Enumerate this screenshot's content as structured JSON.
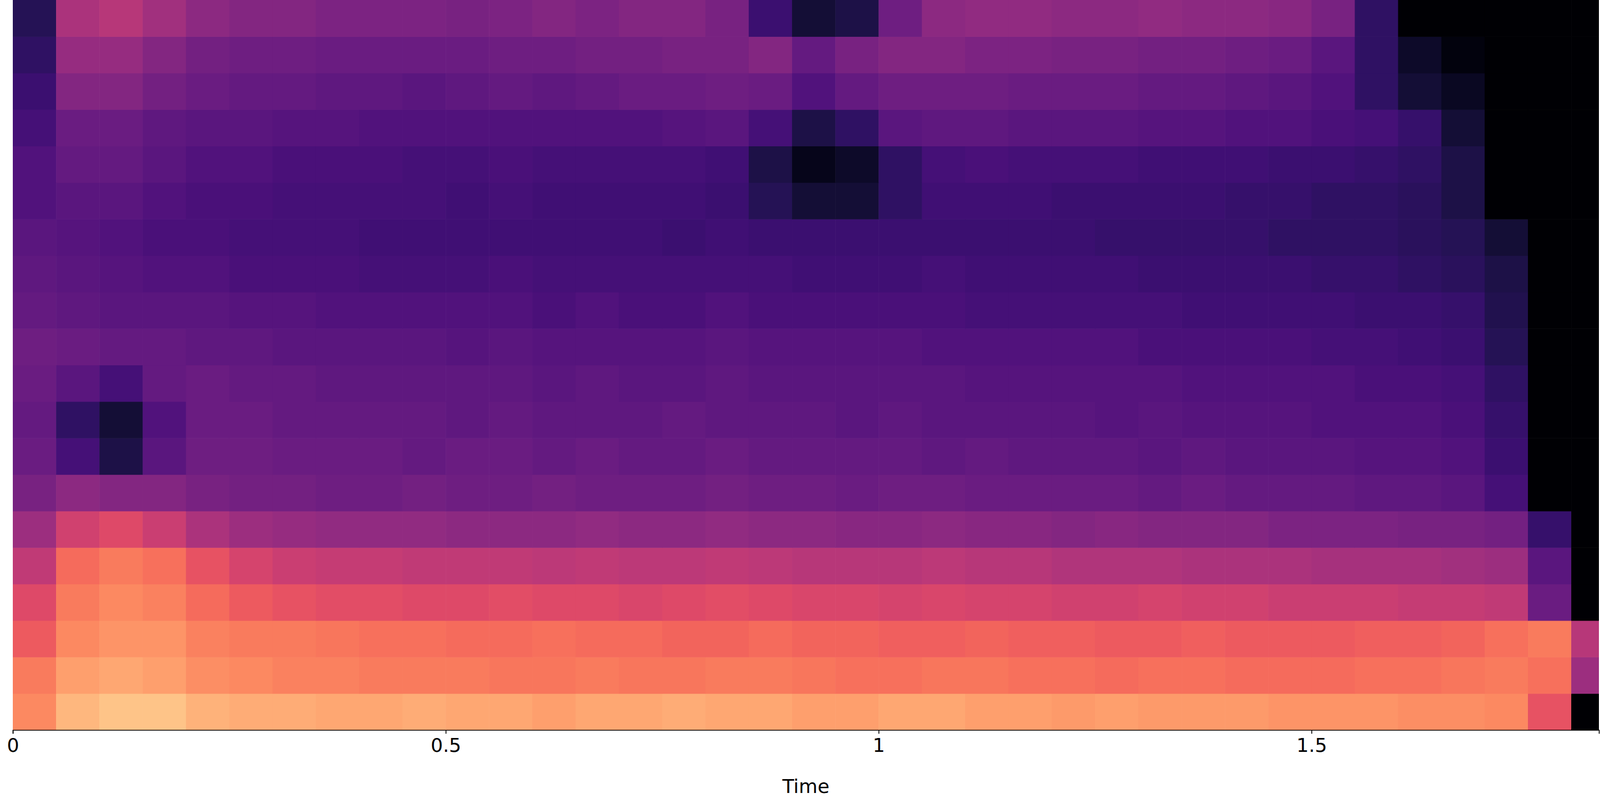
{
  "chart_data": {
    "type": "heatmap",
    "x_label": "Time",
    "x": [
      0,
      0.05,
      0.1,
      0.15,
      0.2,
      0.25,
      0.3,
      0.35,
      0.4,
      0.45,
      0.5,
      0.55,
      0.6,
      0.65,
      0.7,
      0.75,
      0.8,
      0.85,
      0.9,
      0.95,
      1,
      1.05,
      1.1,
      1.15,
      1.2,
      1.25,
      1.3,
      1.35,
      1.4,
      1.45,
      1.5,
      1.55,
      1.6,
      1.65,
      1.7,
      1.75,
      1.8
    ],
    "xlim": [
      0,
      1.832
    ],
    "xticks": [
      0,
      0.5,
      1,
      1.5
    ],
    "zlim": [
      -80,
      0
    ],
    "tick_labels": "x",
    "values": [
      [
        -20,
        -12,
        -10,
        -10,
        -13,
        -14,
        -14,
        -15,
        -15,
        -14,
        -15,
        -15,
        -16,
        -15,
        -15,
        -14,
        -15,
        -15,
        -16,
        -16,
        -15,
        -15,
        -16,
        -16,
        -17,
        -16,
        -17,
        -17,
        -17,
        -18,
        -18,
        -18,
        -19,
        -19,
        -20,
        -30,
        -80
      ],
      [
        -22,
        -16,
        -15,
        -16,
        -19,
        -20,
        -21,
        -21,
        -22,
        -22,
        -22,
        -23,
        -23,
        -22,
        -23,
        -23,
        -22,
        -22,
        -23,
        -24,
        -24,
        -23,
        -23,
        -24,
        -24,
        -25,
        -24,
        -24,
        -25,
        -25,
        -25,
        -24,
        -24,
        -23,
        -22,
        -24,
        -45
      ],
      [
        -28,
        -20,
        -18,
        -18,
        -21,
        -22,
        -22,
        -23,
        -24,
        -24,
        -25,
        -25,
        -24,
        -25,
        -25,
        -26,
        -26,
        -25,
        -26,
        -26,
        -27,
        -27,
        -26,
        -27,
        -27,
        -28,
        -28,
        -27,
        -28,
        -28,
        -28,
        -27,
        -27,
        -26,
        -24,
        -22,
        -40
      ],
      [
        -32,
        -22,
        -20,
        -21,
        -25,
        -28,
        -30,
        -31,
        -31,
        -32,
        -32,
        -31,
        -32,
        -32,
        -33,
        -32,
        -31,
        -32,
        -33,
        -33,
        -34,
        -33,
        -34,
        -34,
        -35,
        -35,
        -34,
        -35,
        -35,
        -36,
        -36,
        -36,
        -37,
        -37,
        -38,
        -55,
        -80
      ],
      [
        -38,
        -25,
        -22,
        -24,
        -30,
        -34,
        -36,
        -37,
        -37,
        -38,
        -38,
        -38,
        -39,
        -38,
        -39,
        -39,
        -38,
        -39,
        -40,
        -40,
        -40,
        -39,
        -40,
        -40,
        -41,
        -41,
        -41,
        -42,
        -42,
        -42,
        -43,
        -43,
        -43,
        -44,
        -45,
        -58,
        -80
      ],
      [
        -45,
        -35,
        -32,
        -36,
        -42,
        -45,
        -46,
        -47,
        -47,
        -47,
        -48,
        -48,
        -48,
        -47,
        -48,
        -48,
        -47,
        -48,
        -48,
        -49,
        -49,
        -48,
        -49,
        -49,
        -50,
        -49,
        -50,
        -50,
        -50,
        -51,
        -51,
        -51,
        -52,
        -52,
        -53,
        -65,
        -80
      ],
      [
        -52,
        -48,
        -50,
        -50,
        -52,
        -53,
        -53,
        -54,
        -54,
        -53,
        -54,
        -54,
        -53,
        -54,
        -54,
        -54,
        -53,
        -54,
        -54,
        -55,
        -54,
        -54,
        -55,
        -55,
        -55,
        -55,
        -56,
        -55,
        -56,
        -56,
        -56,
        -57,
        -57,
        -58,
        -62,
        -80,
        -80
      ],
      [
        -55,
        -62,
        -70,
        -58,
        -54,
        -54,
        -55,
        -55,
        -55,
        -56,
        -55,
        -55,
        -56,
        -55,
        -56,
        -56,
        -55,
        -56,
        -56,
        -56,
        -56,
        -57,
        -56,
        -57,
        -57,
        -57,
        -58,
        -57,
        -58,
        -58,
        -58,
        -59,
        -59,
        -60,
        -64,
        -80,
        -80
      ],
      [
        -56,
        -66,
        -72,
        -60,
        -55,
        -55,
        -56,
        -56,
        -56,
        -56,
        -57,
        -56,
        -57,
        -57,
        -57,
        -56,
        -57,
        -57,
        -57,
        -58,
        -57,
        -58,
        -58,
        -58,
        -58,
        -59,
        -58,
        -59,
        -59,
        -59,
        -60,
        -60,
        -60,
        -61,
        -65,
        -80,
        -80
      ],
      [
        -55,
        -58,
        -62,
        -56,
        -55,
        -56,
        -56,
        -57,
        -57,
        -57,
        -57,
        -57,
        -58,
        -57,
        -58,
        -58,
        -57,
        -58,
        -58,
        -58,
        -58,
        -58,
        -59,
        -59,
        -59,
        -59,
        -59,
        -60,
        -60,
        -60,
        -60,
        -61,
        -61,
        -62,
        -66,
        -80,
        -80
      ],
      [
        -54,
        -55,
        -56,
        -56,
        -57,
        -57,
        -58,
        -58,
        -58,
        -58,
        -59,
        -58,
        -59,
        -59,
        -59,
        -59,
        -58,
        -59,
        -59,
        -59,
        -59,
        -60,
        -60,
        -60,
        -60,
        -60,
        -61,
        -61,
        -61,
        -61,
        -62,
        -62,
        -63,
        -64,
        -68,
        -80,
        -80
      ],
      [
        -56,
        -57,
        -58,
        -58,
        -58,
        -59,
        -59,
        -60,
        -60,
        -60,
        -60,
        -60,
        -61,
        -60,
        -61,
        -61,
        -60,
        -61,
        -61,
        -61,
        -61,
        -61,
        -62,
        -62,
        -62,
        -62,
        -62,
        -63,
        -63,
        -63,
        -63,
        -64,
        -64,
        -65,
        -69,
        -80,
        -80
      ],
      [
        -57,
        -58,
        -59,
        -60,
        -60,
        -61,
        -61,
        -61,
        -62,
        -62,
        -62,
        -61,
        -62,
        -62,
        -62,
        -62,
        -62,
        -62,
        -63,
        -63,
        -63,
        -62,
        -63,
        -63,
        -63,
        -63,
        -64,
        -64,
        -64,
        -64,
        -65,
        -65,
        -66,
        -67,
        -70,
        -80,
        -80
      ],
      [
        -58,
        -59,
        -60,
        -61,
        -61,
        -62,
        -62,
        -62,
        -63,
        -63,
        -63,
        -63,
        -63,
        -63,
        -63,
        -64,
        -63,
        -64,
        -64,
        -64,
        -64,
        -64,
        -64,
        -64,
        -64,
        -65,
        -65,
        -65,
        -65,
        -66,
        -66,
        -66,
        -67,
        -68,
        -72,
        -80,
        -80
      ],
      [
        -60,
        -58,
        -58,
        -60,
        -61,
        -61,
        -62,
        -62,
        -62,
        -62,
        -63,
        -62,
        -63,
        -63,
        -63,
        -63,
        -64,
        -68,
        -72,
        -72,
        -66,
        -63,
        -63,
        -63,
        -64,
        -64,
        -64,
        -64,
        -65,
        -65,
        -66,
        -66,
        -67,
        -70,
        -80,
        -80,
        -80
      ],
      [
        -60,
        -56,
        -56,
        -58,
        -60,
        -60,
        -61,
        -61,
        -61,
        -62,
        -62,
        -61,
        -62,
        -62,
        -62,
        -62,
        -63,
        -70,
        -76,
        -74,
        -66,
        -62,
        -61,
        -62,
        -62,
        -62,
        -63,
        -63,
        -63,
        -64,
        -64,
        -65,
        -66,
        -70,
        -80,
        -80,
        -80
      ],
      [
        -62,
        -55,
        -55,
        -57,
        -58,
        -58,
        -59,
        -59,
        -60,
        -60,
        -60,
        -60,
        -60,
        -60,
        -60,
        -59,
        -58,
        -62,
        -70,
        -66,
        -58,
        -57,
        -57,
        -58,
        -58,
        -58,
        -59,
        -59,
        -60,
        -60,
        -61,
        -62,
        -65,
        -72,
        -80,
        -80,
        -80
      ],
      [
        -64,
        -50,
        -50,
        -53,
        -55,
        -56,
        -56,
        -57,
        -57,
        -58,
        -57,
        -56,
        -57,
        -56,
        -55,
        -55,
        -54,
        -55,
        -60,
        -56,
        -54,
        -54,
        -54,
        -55,
        -55,
        -55,
        -56,
        -56,
        -57,
        -58,
        -60,
        -66,
        -72,
        -75,
        -80,
        -80,
        -80
      ],
      [
        -66,
        -46,
        -46,
        -50,
        -53,
        -54,
        -54,
        -55,
        -55,
        -55,
        -55,
        -54,
        -54,
        -53,
        -53,
        -52,
        -52,
        -50,
        -56,
        -52,
        -50,
        -50,
        -51,
        -51,
        -52,
        -52,
        -53,
        -53,
        -54,
        -55,
        -58,
        -66,
        -74,
        -78,
        -80,
        -80,
        -80
      ],
      [
        -68,
        -42,
        -40,
        -44,
        -48,
        -50,
        -50,
        -51,
        -51,
        -51,
        -52,
        -51,
        -50,
        -51,
        -50,
        -50,
        -52,
        -64,
        -72,
        -70,
        -54,
        -48,
        -47,
        -47,
        -48,
        -48,
        -47,
        -48,
        -48,
        -49,
        -52,
        -66,
        -80,
        -80,
        -80,
        -80,
        -80
      ]
    ]
  }
}
